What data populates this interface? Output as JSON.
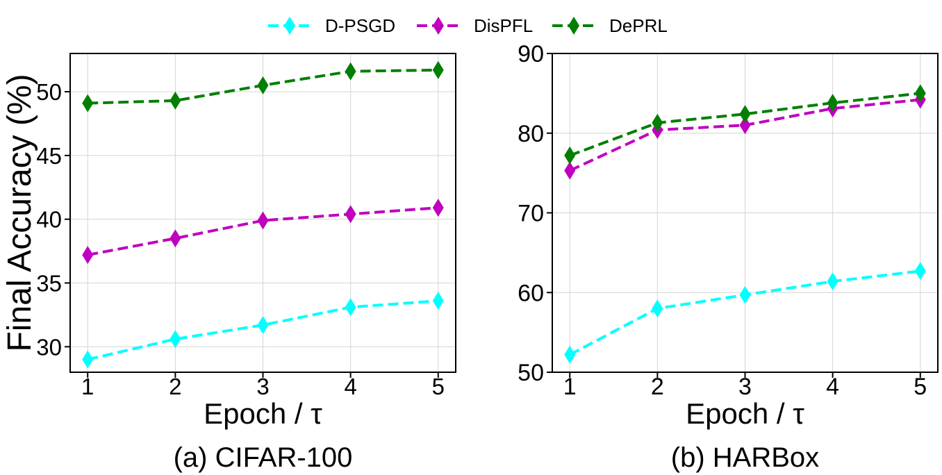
{
  "legend": {
    "items": [
      {
        "label": "D-PSGD",
        "color": "#00ffff"
      },
      {
        "label": "DisPFL",
        "color": "#bf00bf"
      },
      {
        "label": "DePRL",
        "color": "#007f00"
      }
    ]
  },
  "chart_data": [
    {
      "type": "line",
      "title": "(a) CIFAR-100",
      "xlabel": "Epoch / τ",
      "ylabel": "Final Accuracy (%)",
      "x": [
        1,
        2,
        3,
        4,
        5
      ],
      "xticks": [
        "1",
        "2",
        "3",
        "4",
        "5"
      ],
      "xlim": [
        0.8,
        5.2
      ],
      "ylim": [
        28,
        53
      ],
      "yticks": [
        "30",
        "35",
        "40",
        "45",
        "50"
      ],
      "grid": true,
      "series": [
        {
          "name": "D-PSGD",
          "color": "#00ffff",
          "values": [
            29.0,
            30.6,
            31.7,
            33.1,
            33.6
          ]
        },
        {
          "name": "DisPFL",
          "color": "#bf00bf",
          "values": [
            37.2,
            38.5,
            39.9,
            40.4,
            40.9
          ]
        },
        {
          "name": "DePRL",
          "color": "#007f00",
          "values": [
            49.1,
            49.3,
            50.5,
            51.6,
            51.7
          ]
        }
      ]
    },
    {
      "type": "line",
      "title": "(b) HARBox",
      "xlabel": "Epoch / τ",
      "ylabel": "",
      "x": [
        1,
        2,
        3,
        4,
        5
      ],
      "xticks": [
        "1",
        "2",
        "3",
        "4",
        "5"
      ],
      "xlim": [
        0.8,
        5.2
      ],
      "ylim": [
        50,
        90
      ],
      "yticks": [
        "50",
        "60",
        "70",
        "80",
        "90"
      ],
      "grid": true,
      "series": [
        {
          "name": "D-PSGD",
          "color": "#00ffff",
          "values": [
            52.2,
            58.0,
            59.7,
            61.4,
            62.7
          ]
        },
        {
          "name": "DisPFL",
          "color": "#bf00bf",
          "values": [
            75.3,
            80.4,
            81.0,
            83.1,
            84.2
          ]
        },
        {
          "name": "DePRL",
          "color": "#007f00",
          "values": [
            77.2,
            81.3,
            82.4,
            83.8,
            85.0
          ]
        }
      ]
    }
  ]
}
